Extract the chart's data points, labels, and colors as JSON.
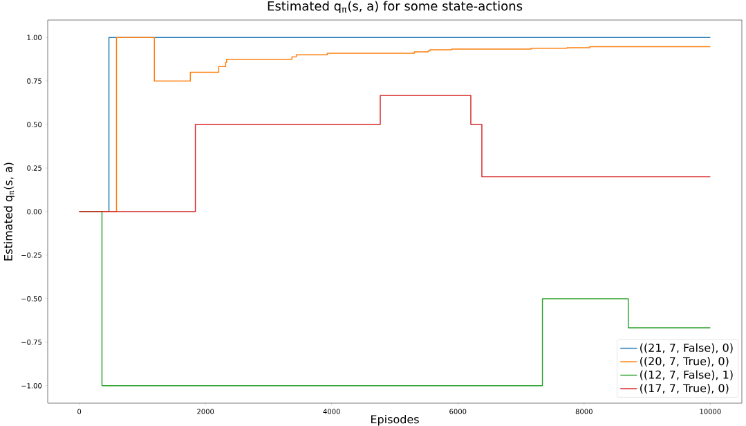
{
  "chart_data": {
    "type": "step",
    "title": "Estimated q$_{π}$(s, a) for some state-actions",
    "xlabel": "Episodes",
    "ylabel": "Estimated q$_{π}$(s, a)",
    "xlim": [
      -500,
      10500
    ],
    "ylim": [
      -1.1,
      1.1
    ],
    "xticks": [
      0,
      2000,
      4000,
      6000,
      8000,
      10000
    ],
    "yticks": [
      {
        "value": -1,
        "label": "−1.00"
      },
      {
        "value": -0.75,
        "label": "−0.75"
      },
      {
        "value": -0.5,
        "label": "−0.50"
      },
      {
        "value": -0.25,
        "label": "−0.25"
      },
      {
        "value": 0,
        "label": "0.00"
      },
      {
        "value": 0.25,
        "label": "0.25"
      },
      {
        "value": 0.5,
        "label": "0.50"
      },
      {
        "value": 0.75,
        "label": "0.75"
      },
      {
        "value": 1,
        "label": "1.00"
      }
    ],
    "legend": "bottom right",
    "grid": false,
    "series": [
      {
        "name": "((21, 7, False), 0)",
        "color": "#1f77b4",
        "x": [
          0,
          470,
          10000
        ],
        "values": [
          0,
          1,
          1
        ]
      },
      {
        "name": "((20, 7, True), 0)",
        "color": "#ff7f0e",
        "x": [
          0,
          590,
          1190,
          1760,
          2210,
          2320,
          2335,
          3370,
          3440,
          3930,
          5310,
          5530,
          5560,
          5900,
          7160,
          7730,
          8090,
          10000
        ],
        "values": [
          0,
          1,
          0.75,
          0.8,
          0.833,
          0.857,
          0.875,
          0.889,
          0.9,
          0.909,
          0.917,
          0.923,
          0.929,
          0.933,
          0.938,
          0.941,
          0.947,
          0.947
        ]
      },
      {
        "name": "((12, 7, False), 1)",
        "color": "#2ca02c",
        "x": [
          0,
          360,
          7340,
          8700,
          10000
        ],
        "values": [
          0,
          -1,
          -0.5,
          -0.667,
          -0.667
        ]
      },
      {
        "name": "((17, 7, True), 0)",
        "color": "#d62728",
        "x": [
          0,
          1840,
          4770,
          6205,
          6380,
          10000
        ],
        "values": [
          0,
          0.5,
          0.667,
          0.5,
          0.2,
          0.2
        ]
      }
    ]
  }
}
